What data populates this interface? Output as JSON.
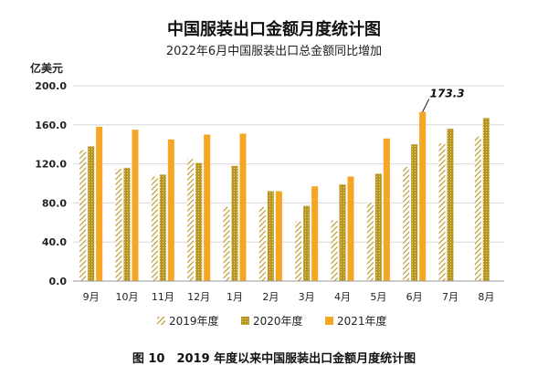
{
  "chart_data": {
    "type": "bar",
    "title": "中国服装出口金额月度统计图",
    "subtitle": "2022年6月中国服装出口总金额同比增加",
    "ylabel": "亿美元",
    "ylim": [
      0,
      200
    ],
    "yticks": [
      "0.0",
      "40.0",
      "80.0",
      "120.0",
      "160.0",
      "200.0"
    ],
    "ytick_values": [
      0,
      40,
      80,
      120,
      160,
      200
    ],
    "grid": true,
    "legend_position": "bottom",
    "categories": [
      "9月",
      "10月",
      "11月",
      "12月",
      "1月",
      "2月",
      "3月",
      "4月",
      "5月",
      "6月",
      "7月",
      "8月"
    ],
    "series": [
      {
        "name": "2019年度",
        "style": "hatch",
        "color": "#C9A227",
        "values": [
          134,
          115,
          107,
          125,
          76,
          76,
          61,
          62,
          80,
          117,
          141,
          148
        ]
      },
      {
        "name": "2020年度",
        "style": "dotted",
        "color": "#B8951E",
        "values": [
          138,
          116,
          109,
          121,
          118,
          92,
          77,
          99,
          110,
          140,
          156,
          167
        ]
      },
      {
        "name": "2021年度",
        "style": "solid",
        "color": "#F5A623",
        "values": [
          158,
          155,
          145,
          150,
          151,
          92,
          97,
          107,
          146,
          173.3,
          null,
          null
        ]
      }
    ],
    "annotation": {
      "text": "173.3",
      "series": 2,
      "index": 9
    },
    "caption": "图 10　2019 年度以来中国服装出口金额月度统计图"
  }
}
